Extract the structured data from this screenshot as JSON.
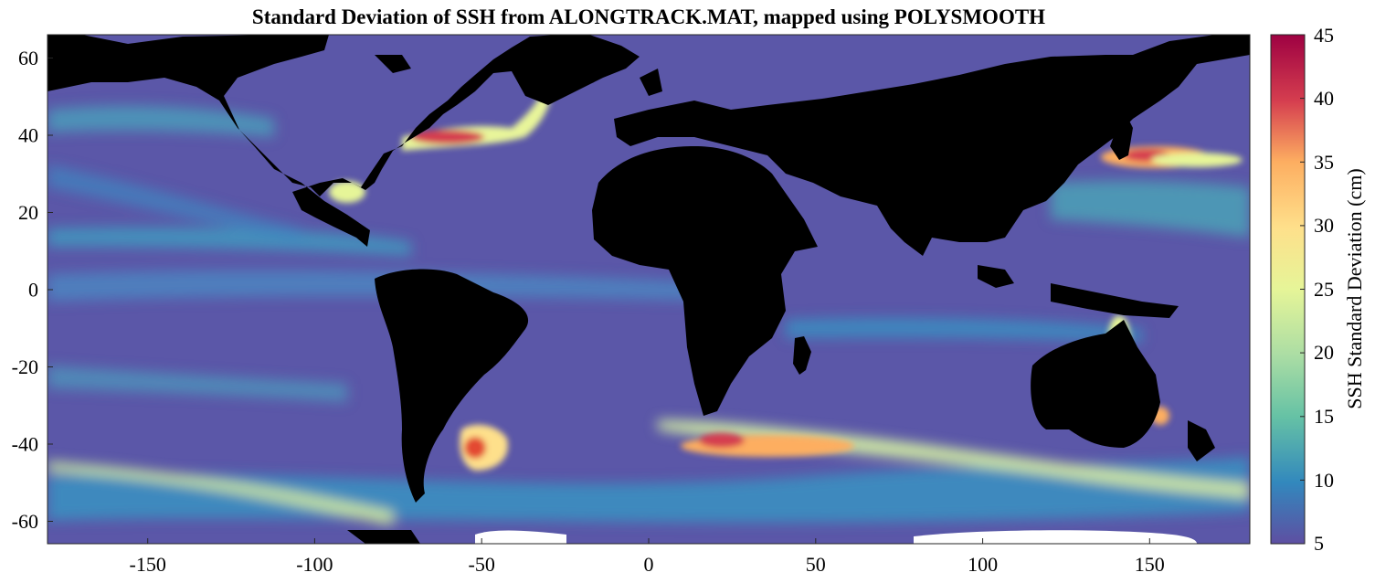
{
  "map": {
    "title": "Standard Deviation of SSH from ALONGTRACK.MAT, mapped using POLYSMOOTH",
    "x_ticks": [
      "-150",
      "-100",
      "-50",
      "0",
      "50",
      "100",
      "150"
    ],
    "y_ticks": [
      "60",
      "40",
      "20",
      "0",
      "-20",
      "-40",
      "-60"
    ],
    "colorbar": {
      "label": "SSH Standard Deviation (cm)",
      "ticks": [
        "45",
        "40",
        "35",
        "30",
        "25",
        "20",
        "15",
        "10",
        "5"
      ],
      "colormap": [
        "#5e4fa2",
        "#3288bd",
        "#66c2a5",
        "#abdda4",
        "#e6f598",
        "#fee08b",
        "#fdae61",
        "#f46d43",
        "#d53e4f",
        "#9e0142"
      ]
    },
    "colors": {
      "ocean_background": "#5b57a8",
      "land": "#000000",
      "missing": "#ffffff"
    }
  }
}
